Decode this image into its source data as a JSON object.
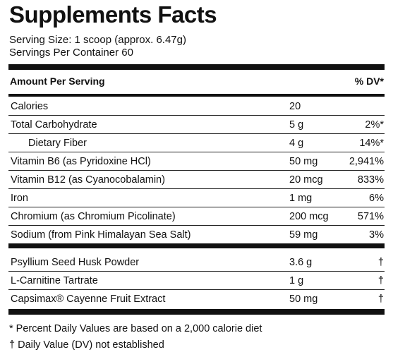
{
  "title": "Supplements Facts",
  "serving_size": "Serving Size: 1 scoop (approx. 6.47g)",
  "servings_per_container": "Servings Per Container 60",
  "header": {
    "amount_label": "Amount Per Serving",
    "dv_label": "% DV*"
  },
  "section1": [
    {
      "name": "Calories",
      "amount": "20",
      "dv": "",
      "indent": false
    },
    {
      "name": "Total Carbohydrate",
      "amount": "5 g",
      "dv": "2%*",
      "indent": false
    },
    {
      "name": "Dietary Fiber",
      "amount": "4 g",
      "dv": "14%*",
      "indent": true
    },
    {
      "name": "Vitamin B6 (as Pyridoxine HCl)",
      "amount": "50 mg",
      "dv": "2,941%",
      "indent": false
    },
    {
      "name": "Vitamin B12 (as Cyanocobalamin)",
      "amount": "20 mcg",
      "dv": "833%",
      "indent": false
    },
    {
      "name": "Iron",
      "amount": "1 mg",
      "dv": "6%",
      "indent": false
    },
    {
      "name": "Chromium (as Chromium Picolinate)",
      "amount": "200 mcg",
      "dv": "571%",
      "indent": false
    },
    {
      "name": "Sodium (from Pink Himalayan Sea Salt)",
      "amount": "59 mg",
      "dv": "3%",
      "indent": false
    }
  ],
  "section2": [
    {
      "name": "Psyllium Seed Husk Powder",
      "amount": "3.6 g",
      "dv": "†"
    },
    {
      "name": "L-Carnitine Tartrate",
      "amount": "1 g",
      "dv": "†"
    },
    {
      "name": "Capsimax® Cayenne Fruit Extract",
      "amount": "50 mg",
      "dv": "†"
    }
  ],
  "footnotes": {
    "dv_note": "*  Percent Daily Values are based on a 2,000 calorie diet",
    "dagger_note": "† Daily Value (DV) not established"
  }
}
